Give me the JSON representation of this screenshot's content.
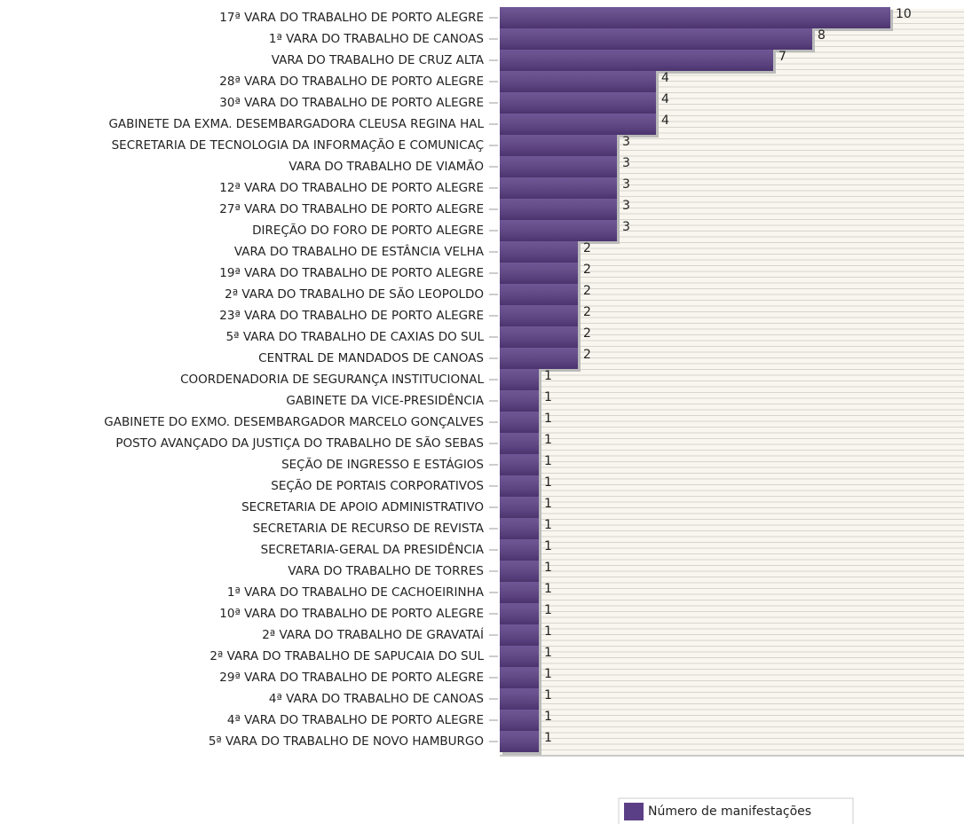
{
  "chart_data": {
    "type": "bar",
    "orientation": "horizontal",
    "categories": [
      "17ª VARA DO TRABALHO DE PORTO ALEGRE",
      "1ª VARA DO TRABALHO DE CANOAS",
      "VARA DO TRABALHO DE CRUZ ALTA",
      "28ª VARA DO TRABALHO DE PORTO ALEGRE",
      "30ª VARA DO TRABALHO DE PORTO ALEGRE",
      "GABINETE DA EXMA. DESEMBARGADORA CLEUSA REGINA HAL",
      "SECRETARIA DE TECNOLOGIA DA INFORMAÇÃO E COMUNICAÇ",
      "VARA DO TRABALHO DE VIAMÃO",
      "12ª VARA DO TRABALHO DE PORTO ALEGRE",
      "27ª VARA DO TRABALHO DE PORTO ALEGRE",
      "DIREÇÃO DO FORO DE PORTO ALEGRE",
      "VARA DO TRABALHO DE ESTÂNCIA VELHA",
      "19ª VARA DO TRABALHO DE PORTO ALEGRE",
      "2ª VARA DO TRABALHO DE SÃO LEOPOLDO",
      "23ª VARA DO TRABALHO DE PORTO ALEGRE",
      "5ª VARA DO TRABALHO DE CAXIAS DO SUL",
      "CENTRAL DE MANDADOS DE CANOAS",
      "COORDENADORIA DE SEGURANÇA INSTITUCIONAL",
      "GABINETE DA VICE-PRESIDÊNCIA",
      "GABINETE DO EXMO. DESEMBARGADOR MARCELO GONÇALVES",
      "POSTO AVANÇADO DA JUSTIÇA DO TRABALHO DE SÃO SEBAS",
      "SEÇÃO DE INGRESSO E ESTÁGIOS",
      "SEÇÃO DE PORTAIS CORPORATIVOS",
      "SECRETARIA DE APOIO ADMINISTRATIVO",
      "SECRETARIA DE RECURSO DE REVISTA",
      "SECRETARIA-GERAL DA PRESIDÊNCIA",
      "VARA DO TRABALHO DE TORRES",
      "1ª VARA DO TRABALHO DE CACHOEIRINHA",
      "10ª VARA DO TRABALHO DE PORTO ALEGRE",
      "2ª VARA DO TRABALHO DE GRAVATAÍ",
      "2ª VARA DO TRABALHO DE SAPUCAIA DO SUL",
      "29ª VARA DO TRABALHO DE PORTO ALEGRE",
      "4ª VARA DO TRABALHO DE CANOAS",
      "4ª VARA DO TRABALHO DE PORTO ALEGRE",
      "5ª VARA DO TRABALHO DE NOVO HAMBURGO"
    ],
    "series": [
      {
        "name": "Número de manifestações",
        "color": "#5b3f86",
        "values": [
          10,
          8,
          7,
          4,
          4,
          4,
          3,
          3,
          3,
          3,
          3,
          2,
          2,
          2,
          2,
          2,
          2,
          1,
          1,
          1,
          1,
          1,
          1,
          1,
          1,
          1,
          1,
          1,
          1,
          1,
          1,
          1,
          1,
          1,
          1
        ]
      }
    ],
    "xlim": [
      0,
      12
    ]
  }
}
